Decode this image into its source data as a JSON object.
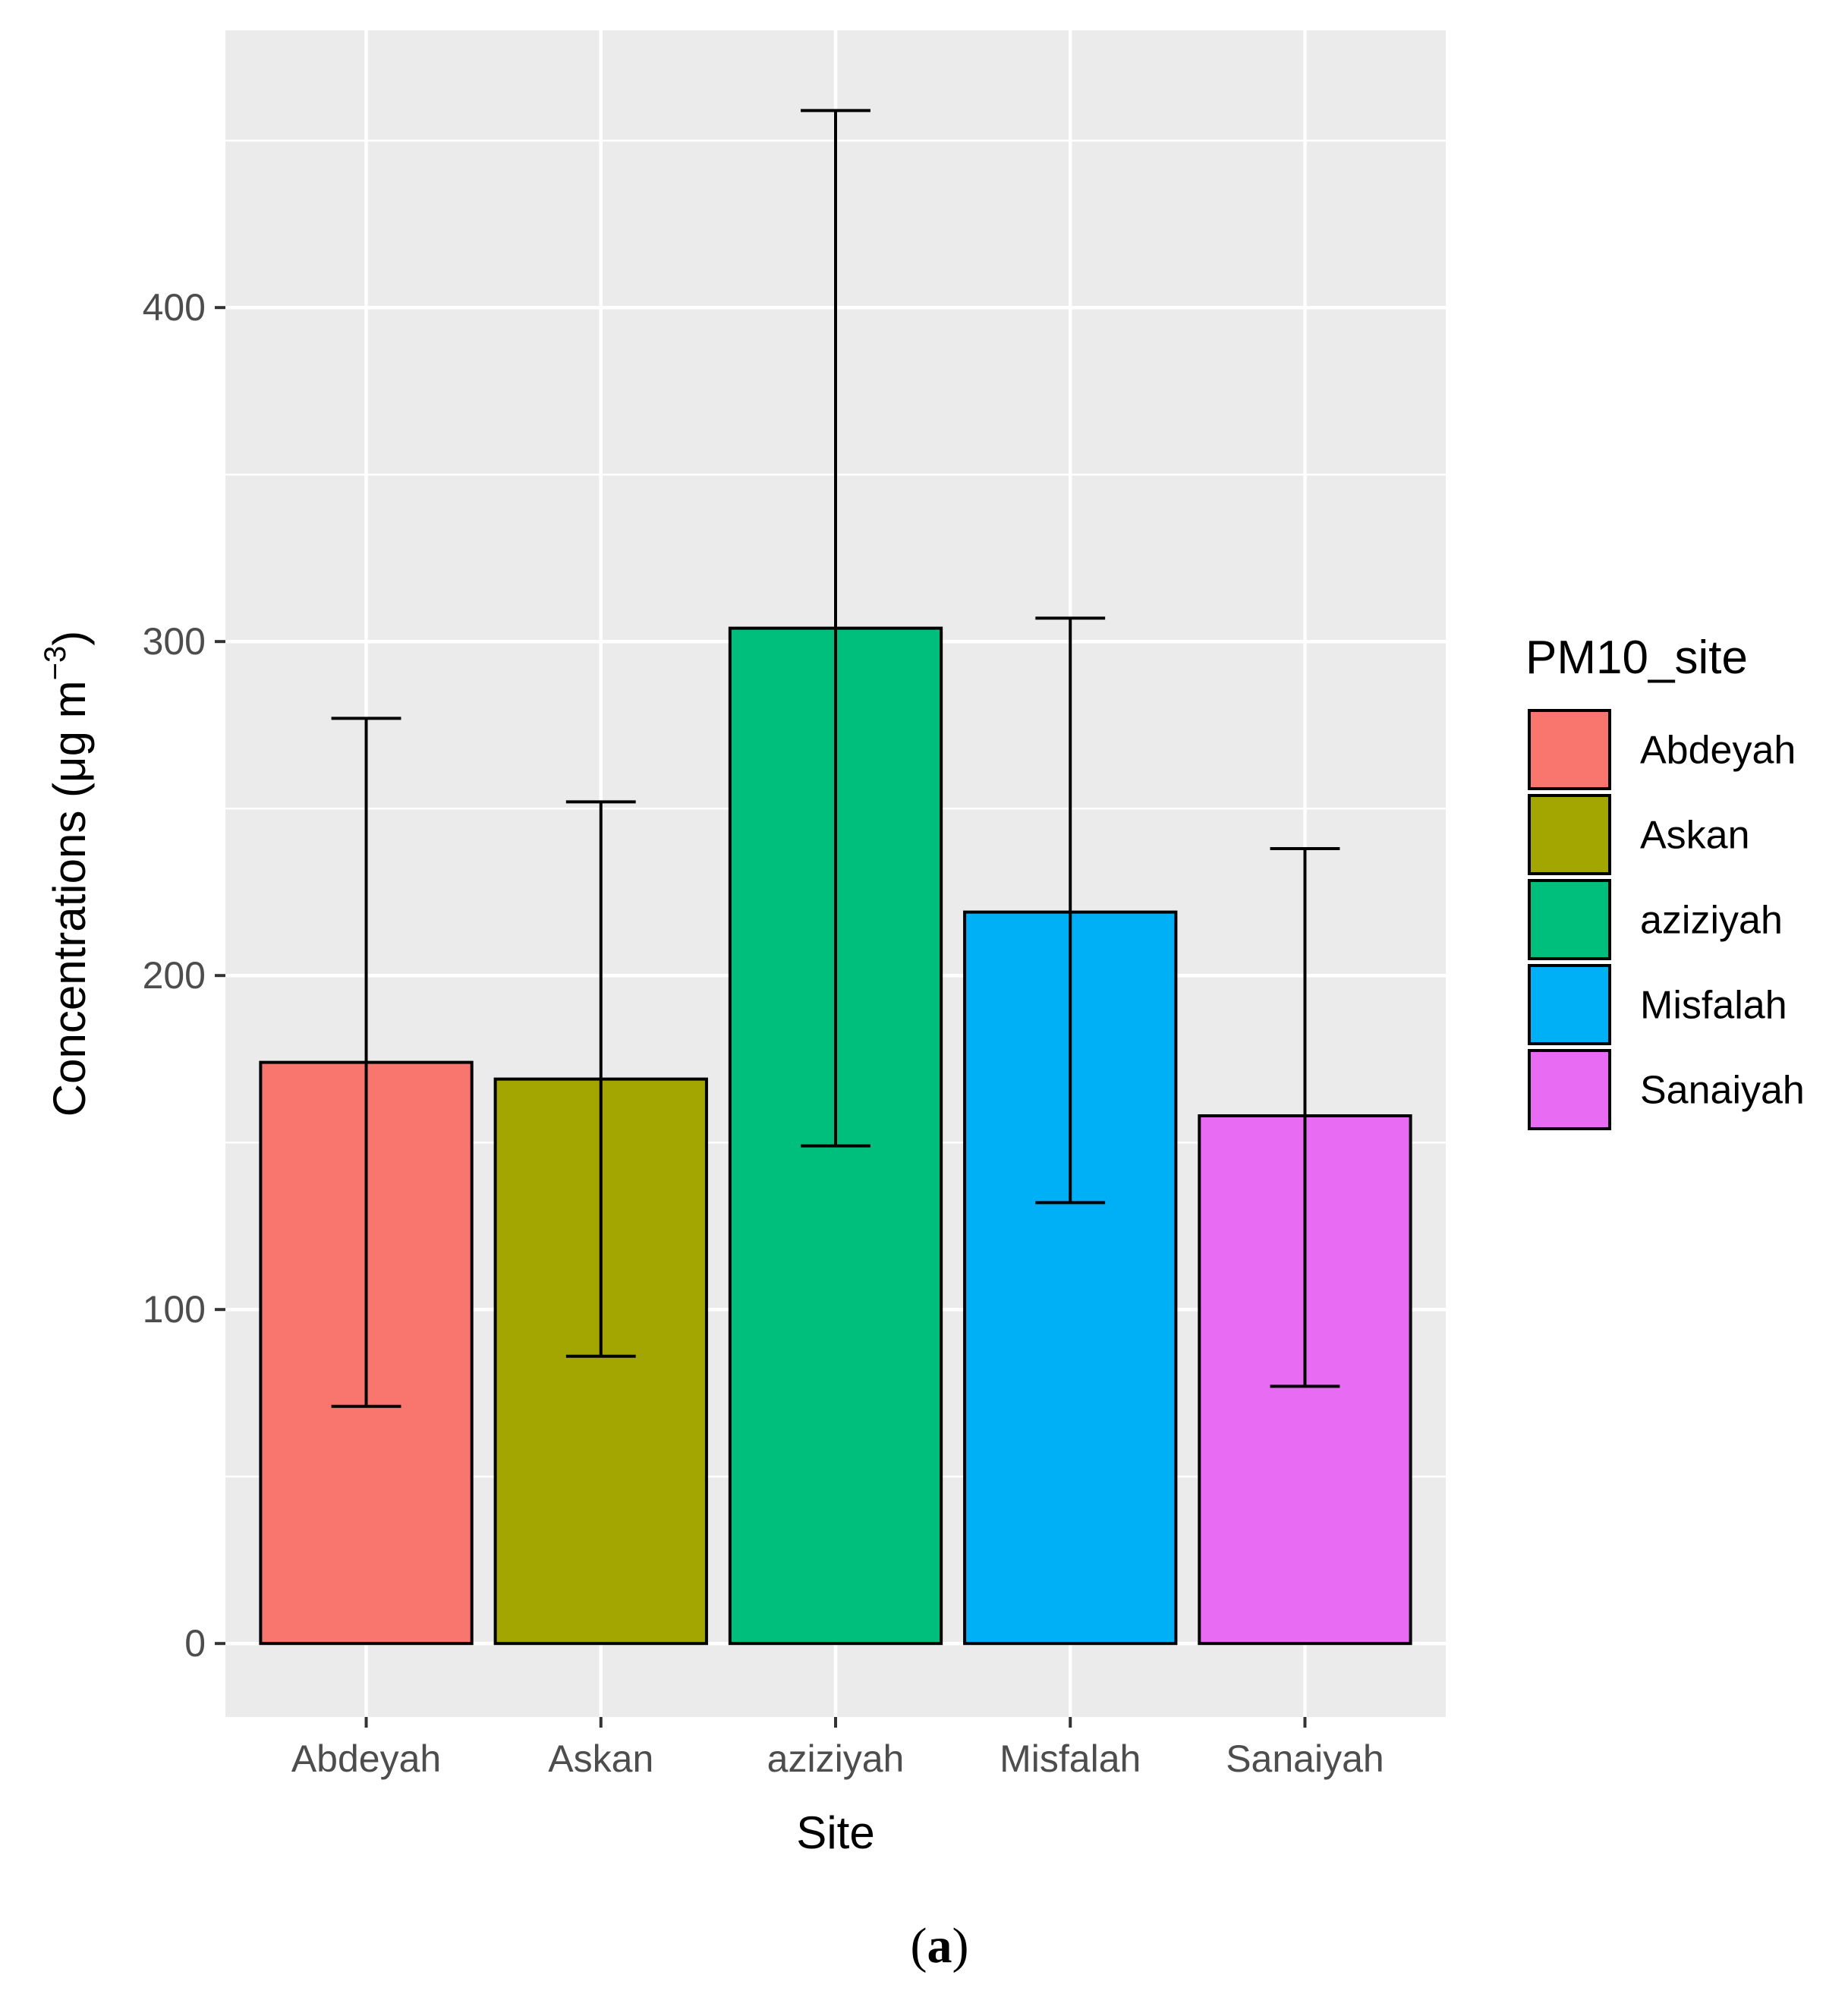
{
  "chart_data": {
    "type": "bar",
    "categories": [
      "Abdeyah",
      "Askan",
      "aziziyah",
      "Misfalah",
      "Sanaiyah"
    ],
    "values": [
      174,
      169,
      304,
      219,
      158
    ],
    "error_low": [
      71,
      86,
      149,
      132,
      77
    ],
    "error_high": [
      277,
      252,
      459,
      307,
      238
    ],
    "colors": [
      "#F8766D",
      "#A3A500",
      "#00BF7D",
      "#00B0F6",
      "#E76BF3"
    ],
    "xlabel": "Site",
    "ylabel": {
      "main": "Concentrations (μg m",
      "superscript": "−3",
      "close": ")"
    },
    "ylim": [
      -22,
      483
    ],
    "yticks": [
      0,
      100,
      200,
      300,
      400
    ],
    "ytick_labels": [
      "0",
      "100",
      "200",
      "300",
      "400"
    ],
    "ygrid_minor": [
      50,
      150,
      250,
      350,
      450
    ],
    "grid": true,
    "legend": {
      "title": "PM10_site",
      "position": "right",
      "entries": [
        "Abdeyah",
        "Askan",
        "aziziyah",
        "Misfalah",
        "Sanaiyah"
      ]
    },
    "caption": {
      "open": "(",
      "letter": "a",
      "close": ")"
    }
  }
}
